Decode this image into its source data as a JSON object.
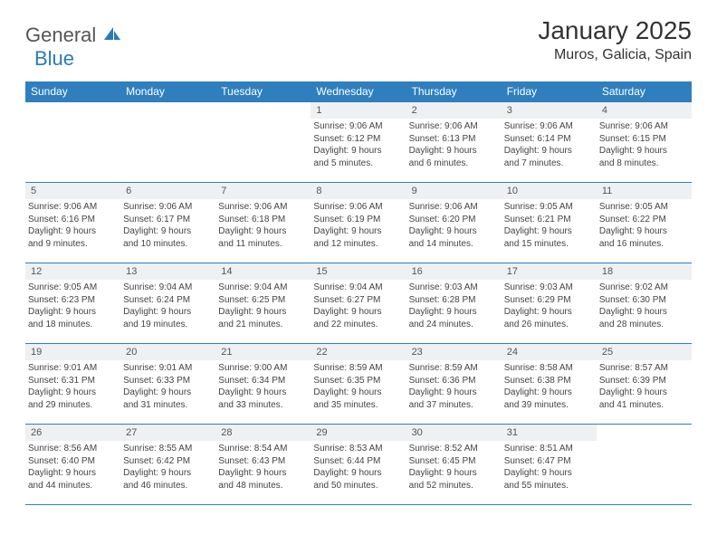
{
  "brand": {
    "name_part1": "General",
    "name_part2": "Blue",
    "color_gray": "#555555",
    "color_blue": "#2a7ab8"
  },
  "header": {
    "title": "January 2025",
    "location": "Muros, Galicia, Spain"
  },
  "theme": {
    "header_bg": "#2f7fbf",
    "header_fg": "#ffffff",
    "daynum_bg": "#eef0f2",
    "border_color": "#2f7fbf",
    "text_color": "#444444"
  },
  "weekdays": [
    "Sunday",
    "Monday",
    "Tuesday",
    "Wednesday",
    "Thursday",
    "Friday",
    "Saturday"
  ],
  "weeks": [
    [
      {
        "n": "",
        "empty": true
      },
      {
        "n": "",
        "empty": true
      },
      {
        "n": "",
        "empty": true
      },
      {
        "n": "1",
        "sunrise": "Sunrise: 9:06 AM",
        "sunset": "Sunset: 6:12 PM",
        "day1": "Daylight: 9 hours",
        "day2": "and 5 minutes."
      },
      {
        "n": "2",
        "sunrise": "Sunrise: 9:06 AM",
        "sunset": "Sunset: 6:13 PM",
        "day1": "Daylight: 9 hours",
        "day2": "and 6 minutes."
      },
      {
        "n": "3",
        "sunrise": "Sunrise: 9:06 AM",
        "sunset": "Sunset: 6:14 PM",
        "day1": "Daylight: 9 hours",
        "day2": "and 7 minutes."
      },
      {
        "n": "4",
        "sunrise": "Sunrise: 9:06 AM",
        "sunset": "Sunset: 6:15 PM",
        "day1": "Daylight: 9 hours",
        "day2": "and 8 minutes."
      }
    ],
    [
      {
        "n": "5",
        "sunrise": "Sunrise: 9:06 AM",
        "sunset": "Sunset: 6:16 PM",
        "day1": "Daylight: 9 hours",
        "day2": "and 9 minutes."
      },
      {
        "n": "6",
        "sunrise": "Sunrise: 9:06 AM",
        "sunset": "Sunset: 6:17 PM",
        "day1": "Daylight: 9 hours",
        "day2": "and 10 minutes."
      },
      {
        "n": "7",
        "sunrise": "Sunrise: 9:06 AM",
        "sunset": "Sunset: 6:18 PM",
        "day1": "Daylight: 9 hours",
        "day2": "and 11 minutes."
      },
      {
        "n": "8",
        "sunrise": "Sunrise: 9:06 AM",
        "sunset": "Sunset: 6:19 PM",
        "day1": "Daylight: 9 hours",
        "day2": "and 12 minutes."
      },
      {
        "n": "9",
        "sunrise": "Sunrise: 9:06 AM",
        "sunset": "Sunset: 6:20 PM",
        "day1": "Daylight: 9 hours",
        "day2": "and 14 minutes."
      },
      {
        "n": "10",
        "sunrise": "Sunrise: 9:05 AM",
        "sunset": "Sunset: 6:21 PM",
        "day1": "Daylight: 9 hours",
        "day2": "and 15 minutes."
      },
      {
        "n": "11",
        "sunrise": "Sunrise: 9:05 AM",
        "sunset": "Sunset: 6:22 PM",
        "day1": "Daylight: 9 hours",
        "day2": "and 16 minutes."
      }
    ],
    [
      {
        "n": "12",
        "sunrise": "Sunrise: 9:05 AM",
        "sunset": "Sunset: 6:23 PM",
        "day1": "Daylight: 9 hours",
        "day2": "and 18 minutes."
      },
      {
        "n": "13",
        "sunrise": "Sunrise: 9:04 AM",
        "sunset": "Sunset: 6:24 PM",
        "day1": "Daylight: 9 hours",
        "day2": "and 19 minutes."
      },
      {
        "n": "14",
        "sunrise": "Sunrise: 9:04 AM",
        "sunset": "Sunset: 6:25 PM",
        "day1": "Daylight: 9 hours",
        "day2": "and 21 minutes."
      },
      {
        "n": "15",
        "sunrise": "Sunrise: 9:04 AM",
        "sunset": "Sunset: 6:27 PM",
        "day1": "Daylight: 9 hours",
        "day2": "and 22 minutes."
      },
      {
        "n": "16",
        "sunrise": "Sunrise: 9:03 AM",
        "sunset": "Sunset: 6:28 PM",
        "day1": "Daylight: 9 hours",
        "day2": "and 24 minutes."
      },
      {
        "n": "17",
        "sunrise": "Sunrise: 9:03 AM",
        "sunset": "Sunset: 6:29 PM",
        "day1": "Daylight: 9 hours",
        "day2": "and 26 minutes."
      },
      {
        "n": "18",
        "sunrise": "Sunrise: 9:02 AM",
        "sunset": "Sunset: 6:30 PM",
        "day1": "Daylight: 9 hours",
        "day2": "and 28 minutes."
      }
    ],
    [
      {
        "n": "19",
        "sunrise": "Sunrise: 9:01 AM",
        "sunset": "Sunset: 6:31 PM",
        "day1": "Daylight: 9 hours",
        "day2": "and 29 minutes."
      },
      {
        "n": "20",
        "sunrise": "Sunrise: 9:01 AM",
        "sunset": "Sunset: 6:33 PM",
        "day1": "Daylight: 9 hours",
        "day2": "and 31 minutes."
      },
      {
        "n": "21",
        "sunrise": "Sunrise: 9:00 AM",
        "sunset": "Sunset: 6:34 PM",
        "day1": "Daylight: 9 hours",
        "day2": "and 33 minutes."
      },
      {
        "n": "22",
        "sunrise": "Sunrise: 8:59 AM",
        "sunset": "Sunset: 6:35 PM",
        "day1": "Daylight: 9 hours",
        "day2": "and 35 minutes."
      },
      {
        "n": "23",
        "sunrise": "Sunrise: 8:59 AM",
        "sunset": "Sunset: 6:36 PM",
        "day1": "Daylight: 9 hours",
        "day2": "and 37 minutes."
      },
      {
        "n": "24",
        "sunrise": "Sunrise: 8:58 AM",
        "sunset": "Sunset: 6:38 PM",
        "day1": "Daylight: 9 hours",
        "day2": "and 39 minutes."
      },
      {
        "n": "25",
        "sunrise": "Sunrise: 8:57 AM",
        "sunset": "Sunset: 6:39 PM",
        "day1": "Daylight: 9 hours",
        "day2": "and 41 minutes."
      }
    ],
    [
      {
        "n": "26",
        "sunrise": "Sunrise: 8:56 AM",
        "sunset": "Sunset: 6:40 PM",
        "day1": "Daylight: 9 hours",
        "day2": "and 44 minutes."
      },
      {
        "n": "27",
        "sunrise": "Sunrise: 8:55 AM",
        "sunset": "Sunset: 6:42 PM",
        "day1": "Daylight: 9 hours",
        "day2": "and 46 minutes."
      },
      {
        "n": "28",
        "sunrise": "Sunrise: 8:54 AM",
        "sunset": "Sunset: 6:43 PM",
        "day1": "Daylight: 9 hours",
        "day2": "and 48 minutes."
      },
      {
        "n": "29",
        "sunrise": "Sunrise: 8:53 AM",
        "sunset": "Sunset: 6:44 PM",
        "day1": "Daylight: 9 hours",
        "day2": "and 50 minutes."
      },
      {
        "n": "30",
        "sunrise": "Sunrise: 8:52 AM",
        "sunset": "Sunset: 6:45 PM",
        "day1": "Daylight: 9 hours",
        "day2": "and 52 minutes."
      },
      {
        "n": "31",
        "sunrise": "Sunrise: 8:51 AM",
        "sunset": "Sunset: 6:47 PM",
        "day1": "Daylight: 9 hours",
        "day2": "and 55 minutes."
      },
      {
        "n": "",
        "empty": true
      }
    ]
  ]
}
